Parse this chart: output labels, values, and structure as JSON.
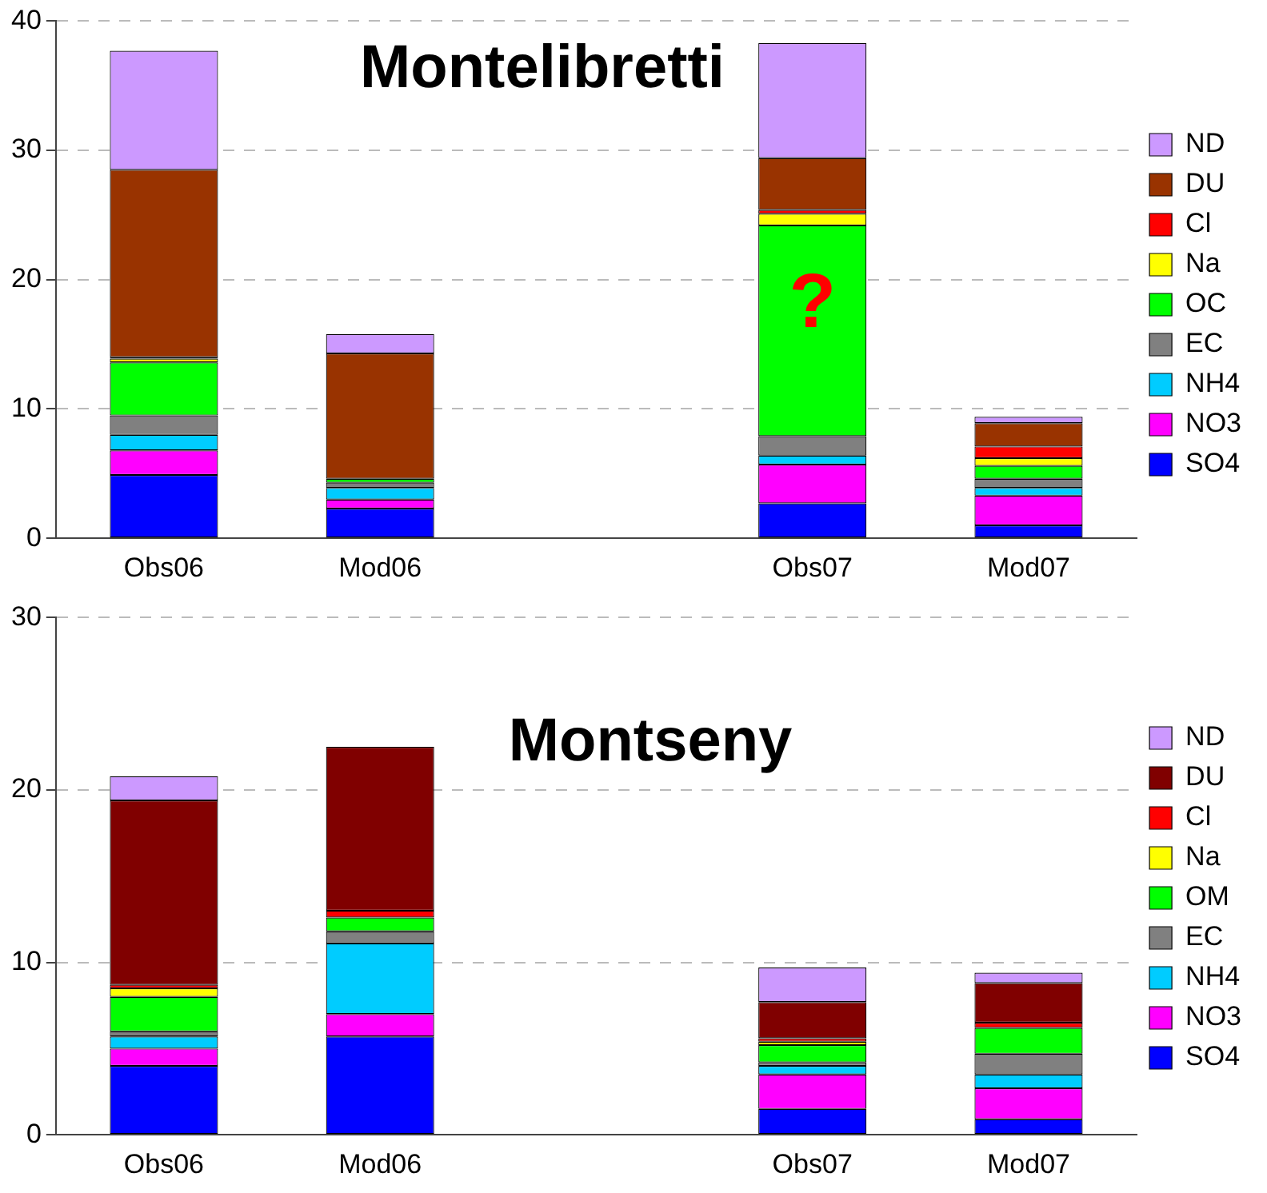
{
  "chart_data": [
    {
      "type": "bar",
      "title": "Montelibretti",
      "stacked": true,
      "categories": [
        "Obs06",
        "Mod06",
        null,
        "Obs07",
        "Mod07"
      ],
      "ylim": [
        0,
        40
      ],
      "yticks": [
        0,
        10,
        20,
        30,
        40
      ],
      "grid": "y",
      "legend": "right",
      "annotations": [
        "?"
      ],
      "series": [
        {
          "name": "SO4",
          "color": "#0000ff",
          "values": [
            4.9,
            2.3,
            null,
            2.7,
            1.0
          ]
        },
        {
          "name": "NO3",
          "color": "#ff00ff",
          "values": [
            1.9,
            0.7,
            null,
            3.0,
            2.3
          ]
        },
        {
          "name": "NH4",
          "color": "#00ccff",
          "values": [
            1.2,
            0.9,
            null,
            0.7,
            0.6
          ]
        },
        {
          "name": "EC",
          "color": "#808080",
          "values": [
            1.5,
            0.4,
            null,
            1.5,
            0.7
          ]
        },
        {
          "name": "OC",
          "color": "#00ff00",
          "values": [
            4.1,
            0.3,
            null,
            16.3,
            1.0
          ]
        },
        {
          "name": "Na",
          "color": "#ffff00",
          "values": [
            0.3,
            null,
            null,
            0.9,
            0.6
          ]
        },
        {
          "name": "Cl",
          "color": "#ff0000",
          "values": [
            0.1,
            null,
            null,
            0.3,
            0.9
          ]
        },
        {
          "name": "DU",
          "color": "#993300",
          "values": [
            14.5,
            9.7,
            null,
            4.0,
            1.8
          ]
        },
        {
          "name": "ND",
          "color": "#cc99ff",
          "values": [
            9.2,
            1.5,
            null,
            8.9,
            0.5
          ]
        }
      ]
    },
    {
      "type": "bar",
      "title": "Montseny",
      "stacked": true,
      "categories": [
        "Obs06",
        "Mod06",
        null,
        "Obs07",
        "Mod07"
      ],
      "ylim": [
        0,
        30
      ],
      "yticks": [
        0,
        10,
        20,
        30
      ],
      "grid": "y",
      "legend": "right",
      "series": [
        {
          "name": "SO4",
          "color": "#0000ff",
          "values": [
            4.0,
            5.7,
            null,
            1.5,
            0.9
          ]
        },
        {
          "name": "NO3",
          "color": "#ff00ff",
          "values": [
            1.0,
            1.3,
            null,
            2.0,
            1.8
          ]
        },
        {
          "name": "NH4",
          "color": "#00ccff",
          "values": [
            0.7,
            4.1,
            null,
            0.5,
            0.8
          ]
        },
        {
          "name": "EC",
          "color": "#808080",
          "values": [
            0.3,
            0.7,
            null,
            0.2,
            1.2
          ]
        },
        {
          "name": "OM",
          "color": "#00ff00",
          "values": [
            2.0,
            0.8,
            null,
            1.0,
            1.5
          ]
        },
        {
          "name": "Na",
          "color": "#ffff00",
          "values": [
            0.5,
            null,
            null,
            0.2,
            null
          ]
        },
        {
          "name": "Cl",
          "color": "#ff0000",
          "values": [
            0.2,
            0.4,
            null,
            0.2,
            0.3
          ]
        },
        {
          "name": "DU",
          "color": "#800000",
          "values": [
            10.7,
            9.5,
            null,
            2.1,
            2.3
          ]
        },
        {
          "name": "ND",
          "color": "#cc99ff",
          "values": [
            1.4,
            null,
            null,
            2.0,
            0.6
          ]
        }
      ]
    }
  ]
}
